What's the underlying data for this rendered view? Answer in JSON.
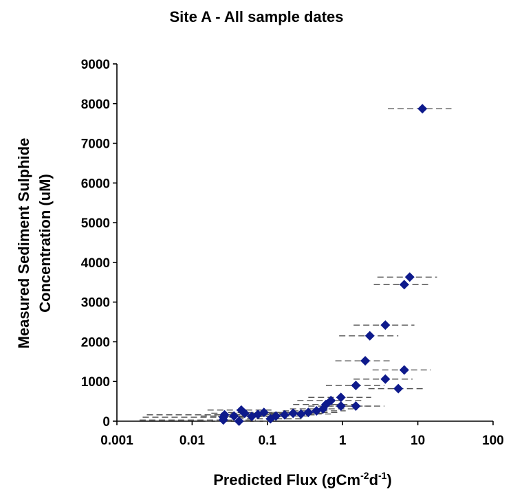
{
  "chart_data": {
    "type": "scatter",
    "title": "Site A - All sample dates",
    "xlabel": {
      "base": "Predicted Flux (gCm",
      "exp1": "-2",
      "mid": "d",
      "exp2": "-1",
      "end": ")"
    },
    "ylabel": [
      "Measured Sediment Sulphide",
      "Concentration (uM)"
    ],
    "x_scale": "log",
    "xlim": [
      0.001,
      100
    ],
    "ylim": [
      0,
      9000
    ],
    "x_ticks": [
      "0.001",
      "0.01",
      "0.1",
      "1",
      "10",
      "100"
    ],
    "y_ticks": [
      "0",
      "1000",
      "2000",
      "3000",
      "4000",
      "5000",
      "6000",
      "7000",
      "8000",
      "9000"
    ],
    "marker_color": "#0e1a8c",
    "error_bar_color": "#555555",
    "error_bars": "horizontal dashed, about one order of magnitude wide",
    "points": [
      {
        "x": 11.5,
        "y": 7870,
        "xmin": 4.0,
        "xmax": 28
      },
      {
        "x": 7.8,
        "y": 3630,
        "xmin": 2.9,
        "xmax": 18
      },
      {
        "x": 6.6,
        "y": 3440,
        "xmin": 2.6,
        "xmax": 15
      },
      {
        "x": 3.7,
        "y": 2420,
        "xmin": 1.4,
        "xmax": 9.0
      },
      {
        "x": 2.3,
        "y": 2150,
        "xmin": 0.9,
        "xmax": 5.5
      },
      {
        "x": 2.0,
        "y": 1520,
        "xmin": 0.8,
        "xmax": 4.5
      },
      {
        "x": 6.6,
        "y": 1290,
        "xmin": 2.5,
        "xmax": 15
      },
      {
        "x": 3.7,
        "y": 1060,
        "xmin": 1.4,
        "xmax": 8.5
      },
      {
        "x": 5.5,
        "y": 820,
        "xmin": 2.2,
        "xmax": 12
      },
      {
        "x": 1.5,
        "y": 900,
        "xmin": 0.6,
        "xmax": 3.6
      },
      {
        "x": 1.5,
        "y": 380,
        "xmin": 0.6,
        "xmax": 3.6
      },
      {
        "x": 0.95,
        "y": 600,
        "xmin": 0.35,
        "xmax": 2.4
      },
      {
        "x": 0.95,
        "y": 380,
        "xmin": 0.35,
        "xmax": 2.4
      },
      {
        "x": 0.7,
        "y": 520,
        "xmin": 0.25,
        "xmax": 1.8
      },
      {
        "x": 0.6,
        "y": 420,
        "xmin": 0.22,
        "xmax": 1.5
      },
      {
        "x": 0.55,
        "y": 310,
        "xmin": 0.2,
        "xmax": 1.4
      },
      {
        "x": 0.45,
        "y": 260,
        "xmin": 0.16,
        "xmax": 1.1
      },
      {
        "x": 0.35,
        "y": 220,
        "xmin": 0.12,
        "xmax": 0.9
      },
      {
        "x": 0.28,
        "y": 180,
        "xmin": 0.1,
        "xmax": 0.7
      },
      {
        "x": 0.22,
        "y": 200,
        "xmin": 0.08,
        "xmax": 0.55
      },
      {
        "x": 0.17,
        "y": 160,
        "xmin": 0.06,
        "xmax": 0.45
      },
      {
        "x": 0.13,
        "y": 130,
        "xmin": 0.05,
        "xmax": 0.35
      },
      {
        "x": 0.11,
        "y": 60,
        "xmin": 0.04,
        "xmax": 0.3
      },
      {
        "x": 0.09,
        "y": 220,
        "xmin": 0.03,
        "xmax": 0.25
      },
      {
        "x": 0.075,
        "y": 170,
        "xmin": 0.027,
        "xmax": 0.2
      },
      {
        "x": 0.062,
        "y": 120,
        "xmin": 0.022,
        "xmax": 0.17
      },
      {
        "x": 0.05,
        "y": 200,
        "xmin": 0.018,
        "xmax": 0.14
      },
      {
        "x": 0.045,
        "y": 280,
        "xmin": 0.016,
        "xmax": 0.12
      },
      {
        "x": 0.042,
        "y": 0,
        "xmin": 0.015,
        "xmax": 0.11
      },
      {
        "x": 0.036,
        "y": 130,
        "xmin": 0.013,
        "xmax": 0.1
      },
      {
        "x": 0.027,
        "y": 160,
        "xmin": 0.0025,
        "xmax": 0.08
      },
      {
        "x": 0.026,
        "y": 100,
        "xmin": 0.0022,
        "xmax": 0.07
      },
      {
        "x": 0.026,
        "y": 30,
        "xmin": 0.002,
        "xmax": 0.07
      }
    ]
  }
}
